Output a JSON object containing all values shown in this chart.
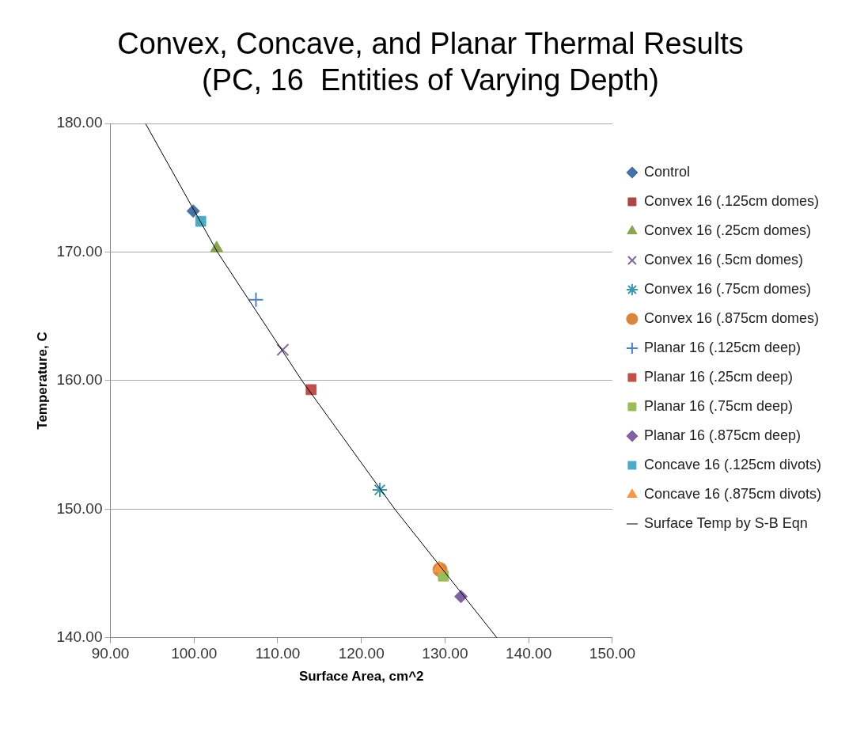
{
  "chart_data": {
    "type": "scatter",
    "title": [
      "Convex, Concave, and Planar Thermal Results",
      "(PC, 16  Entities of Varying Depth)"
    ],
    "xlabel": "Surface Area, cm^2",
    "ylabel": "Temperature, C",
    "xlim": [
      90,
      150
    ],
    "xticks": [
      {
        "value": 90,
        "label": "90.00"
      },
      {
        "value": 100,
        "label": "100.00"
      },
      {
        "value": 110,
        "label": "110.00"
      },
      {
        "value": 120,
        "label": "120.00"
      },
      {
        "value": 130,
        "label": "130.00"
      },
      {
        "value": 140,
        "label": "140.00"
      },
      {
        "value": 150,
        "label": "150.00"
      }
    ],
    "ylim": [
      140,
      180
    ],
    "yticks": [
      {
        "value": 140,
        "label": "140.00"
      },
      {
        "value": 150,
        "label": "150.00"
      },
      {
        "value": 160,
        "label": "160.00"
      },
      {
        "value": 170,
        "label": "170.00"
      },
      {
        "value": 180,
        "label": "180.00"
      }
    ],
    "grid": "y",
    "legend": "right",
    "series": [
      {
        "name": "Control",
        "color": "#4572a7",
        "marker": "diamond",
        "x": [
          99.9
        ],
        "values": [
          173.2
        ]
      },
      {
        "name": "Convex 16 (.125cm domes)",
        "color": "#aa4643",
        "marker": "square",
        "x": [
          null
        ],
        "values": [
          null
        ]
      },
      {
        "name": "Convex 16 (.25cm domes)",
        "color": "#89a54e",
        "marker": "triangle",
        "x": [
          102.7
        ],
        "values": [
          170.3
        ]
      },
      {
        "name": "Convex 16 (.5cm domes)",
        "color": "#80699b",
        "marker": "x",
        "x": [
          110.6
        ],
        "values": [
          162.4
        ]
      },
      {
        "name": "Convex 16 (.75cm domes)",
        "color": "#3d96ae",
        "marker": "cross",
        "x": [
          122.2
        ],
        "values": [
          151.5
        ]
      },
      {
        "name": "Convex 16 (.875cm domes)",
        "color": "#db843d",
        "marker": "circle",
        "x": [
          129.4
        ],
        "values": [
          145.3
        ]
      },
      {
        "name": "Planar 16 (.125cm deep)",
        "color": "#4f81bd",
        "marker": "plus",
        "x": [
          107.4
        ],
        "values": [
          166.3
        ]
      },
      {
        "name": "Planar 16 (.25cm deep)",
        "color": "#c0504d",
        "marker": "square",
        "x": [
          114.0
        ],
        "values": [
          159.3
        ]
      },
      {
        "name": "Planar 16 (.75cm deep)",
        "color": "#9bbb59",
        "marker": "square",
        "x": [
          129.8
        ],
        "values": [
          144.8
        ]
      },
      {
        "name": "Planar 16 (.875cm deep)",
        "color": "#8064a2",
        "marker": "diamond",
        "x": [
          131.9
        ],
        "values": [
          143.2
        ]
      },
      {
        "name": "Concave 16 (.125cm divots)",
        "color": "#4bacc6",
        "marker": "square",
        "x": [
          100.8
        ],
        "values": [
          172.4
        ]
      },
      {
        "name": "Concave 16 (.875cm divots)",
        "color": "#f79646",
        "marker": "triangle",
        "x": [
          129.3
        ],
        "values": [
          145.4
        ]
      },
      {
        "name": "Surface Temp by S-B Eqn",
        "type": "line",
        "color": "#000000",
        "marker": "none",
        "x": [
          94.2,
          102.8,
          112.9,
          124.0,
          136.2
        ],
        "values": [
          180,
          170,
          160,
          150,
          140
        ]
      }
    ]
  }
}
